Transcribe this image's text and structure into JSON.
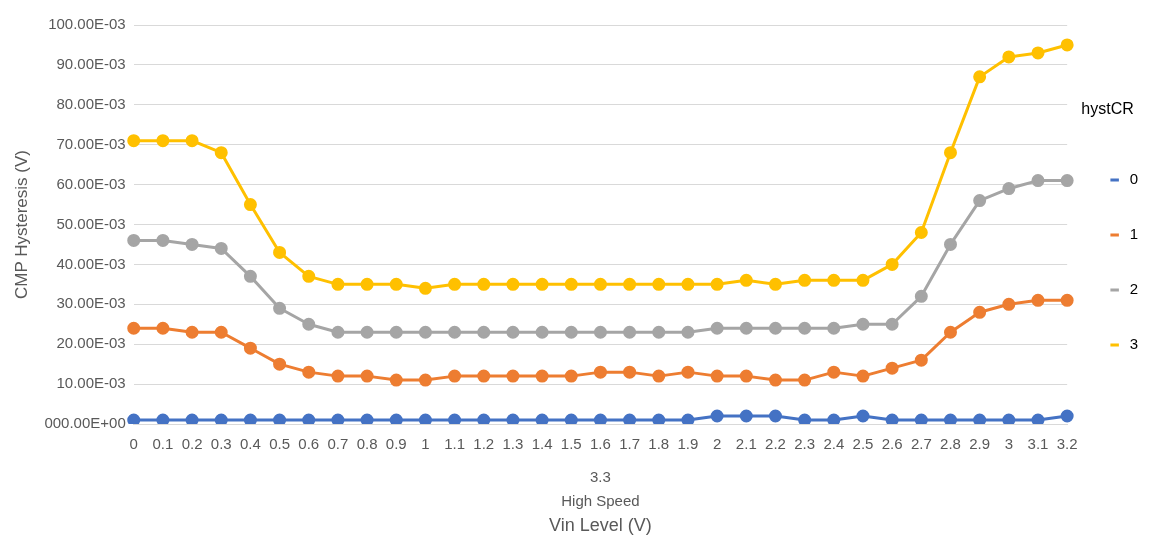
{
  "chart_data": {
    "type": "line",
    "xlabel": "Vin Level (V)",
    "ylabel": "CMP Hysteresis (V)",
    "legend_title": "hystCR",
    "legend": "right",
    "grid": "y",
    "marker": "circle",
    "line_style": "solid",
    "categories": [
      "0",
      "0.1",
      "0.2",
      "0.3",
      "0.4",
      "0.5",
      "0.6",
      "0.7",
      "0.8",
      "0.9",
      "1",
      "1.1",
      "1.2",
      "1.3",
      "1.4",
      "1.5",
      "1.6",
      "1.7",
      "1.8",
      "1.9",
      "2",
      "2.1",
      "2.2",
      "2.3",
      "2.4",
      "2.5",
      "2.6",
      "2.7",
      "2.8",
      "2.9",
      "3",
      "3.1",
      "3.2"
    ],
    "annotations": [
      "3.3",
      "High Speed"
    ],
    "ylim": [
      0,
      0.1
    ],
    "yticks": [
      {
        "value": 0,
        "label": "000.00E+00"
      },
      {
        "value": 0.01,
        "label": "10.00E-03"
      },
      {
        "value": 0.02,
        "label": "20.00E-03"
      },
      {
        "value": 0.03,
        "label": "30.00E-03"
      },
      {
        "value": 0.04,
        "label": "40.00E-03"
      },
      {
        "value": 0.05,
        "label": "50.00E-03"
      },
      {
        "value": 0.06,
        "label": "60.00E-03"
      },
      {
        "value": 0.07,
        "label": "70.00E-03"
      },
      {
        "value": 0.08,
        "label": "80.00E-03"
      },
      {
        "value": 0.09,
        "label": "90.00E-03"
      },
      {
        "value": 0.1,
        "label": "100.00E-03"
      }
    ],
    "series": [
      {
        "name": "0",
        "color": "#4472c4",
        "values": [
          0.001,
          0.001,
          0.001,
          0.001,
          0.001,
          0.001,
          0.001,
          0.001,
          0.001,
          0.001,
          0.001,
          0.001,
          0.001,
          0.001,
          0.001,
          0.001,
          0.001,
          0.001,
          0.001,
          0.001,
          0.002,
          0.002,
          0.002,
          0.001,
          0.001,
          0.002,
          0.001,
          0.001,
          0.001,
          0.001,
          0.001,
          0.001,
          0.002
        ]
      },
      {
        "name": "1",
        "color": "#ed7d31",
        "values": [
          0.024,
          0.024,
          0.023,
          0.023,
          0.019,
          0.015,
          0.013,
          0.012,
          0.012,
          0.011,
          0.011,
          0.012,
          0.012,
          0.012,
          0.012,
          0.012,
          0.013,
          0.013,
          0.012,
          0.013,
          0.012,
          0.012,
          0.011,
          0.011,
          0.013,
          0.012,
          0.014,
          0.016,
          0.023,
          0.028,
          0.03,
          0.031,
          0.031
        ]
      },
      {
        "name": "2",
        "color": "#a5a5a5",
        "values": [
          0.046,
          0.046,
          0.045,
          0.044,
          0.037,
          0.029,
          0.025,
          0.023,
          0.023,
          0.023,
          0.023,
          0.023,
          0.023,
          0.023,
          0.023,
          0.023,
          0.023,
          0.023,
          0.023,
          0.023,
          0.024,
          0.024,
          0.024,
          0.024,
          0.024,
          0.025,
          0.025,
          0.032,
          0.045,
          0.056,
          0.059,
          0.061,
          0.061
        ]
      },
      {
        "name": "3",
        "color": "#ffc000",
        "values": [
          0.071,
          0.071,
          0.071,
          0.068,
          0.055,
          0.043,
          0.037,
          0.035,
          0.035,
          0.035,
          0.034,
          0.035,
          0.035,
          0.035,
          0.035,
          0.035,
          0.035,
          0.035,
          0.035,
          0.035,
          0.035,
          0.036,
          0.035,
          0.036,
          0.036,
          0.036,
          0.04,
          0.048,
          0.068,
          0.087,
          0.092,
          0.093,
          0.095
        ]
      }
    ]
  }
}
